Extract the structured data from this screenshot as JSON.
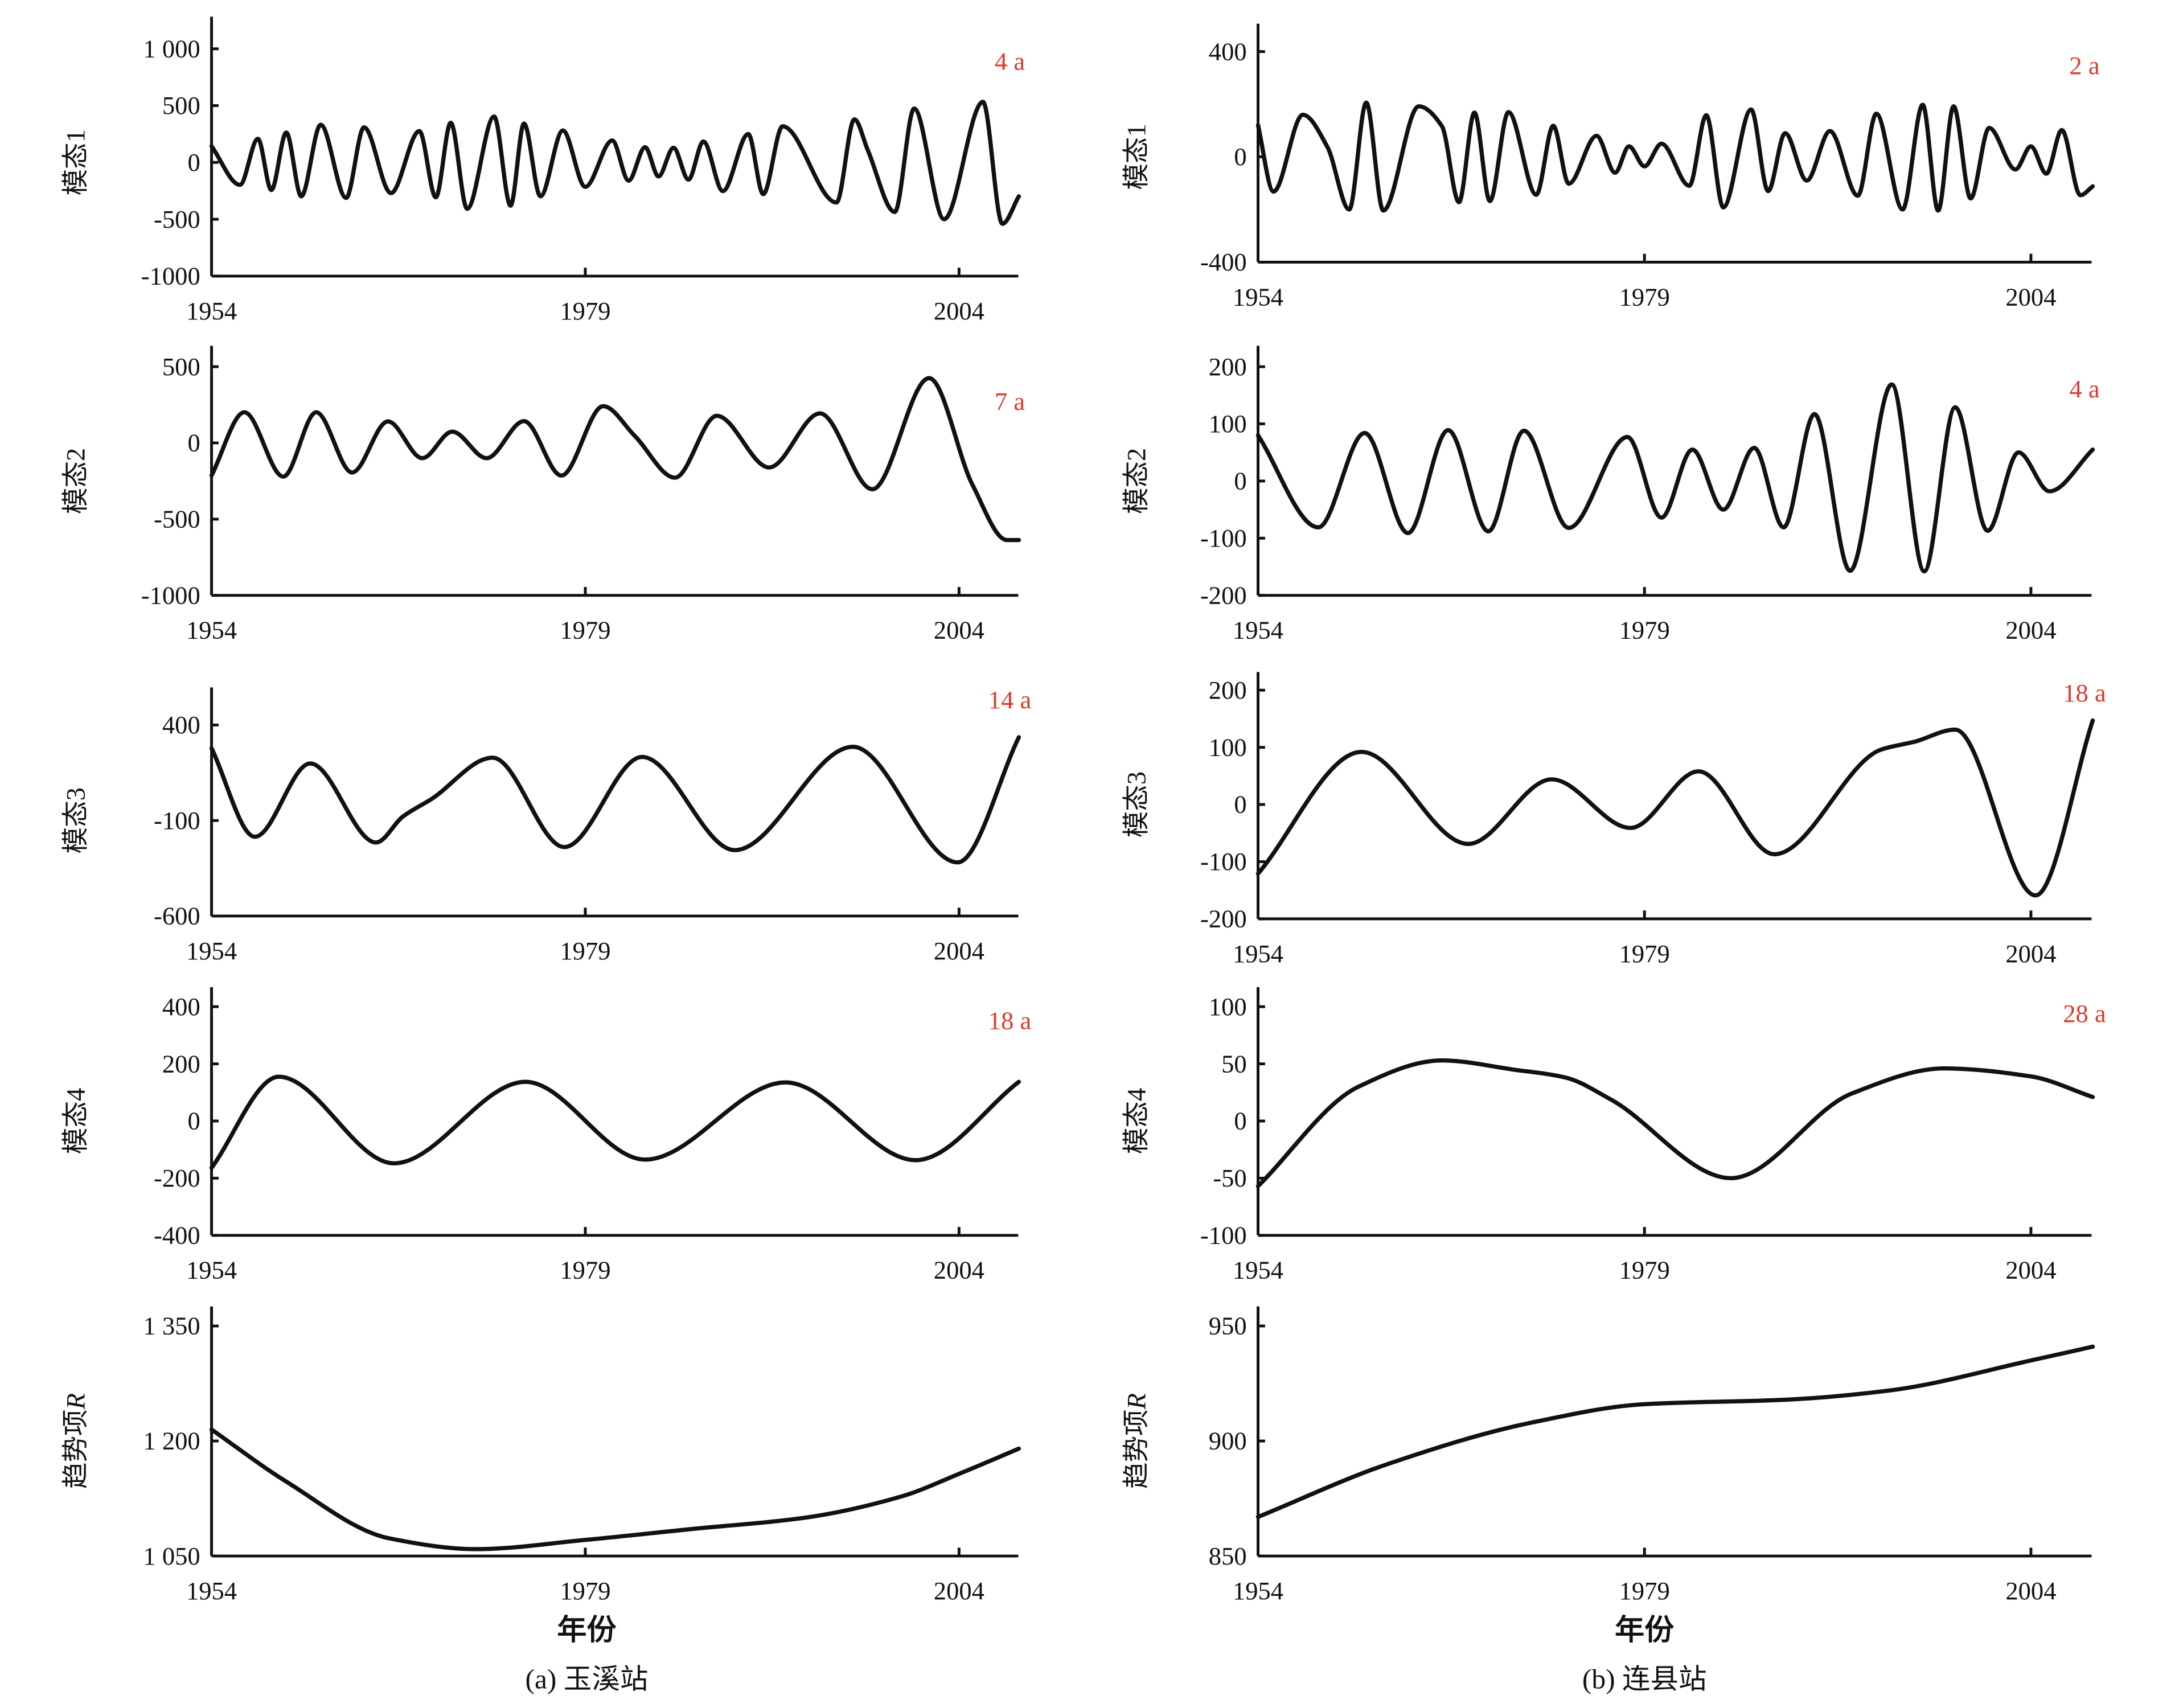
{
  "xlabel": "年份",
  "captions": [
    "(a) 玉溪站",
    "(b) 连县站"
  ],
  "chart_data": [
    {
      "panel": "a",
      "station": "玉溪站",
      "type": "line",
      "ylabel": "模态1",
      "period_label": "4 a",
      "xlim": [
        1954,
        2008
      ],
      "xticks": [
        1954,
        1979,
        2004
      ],
      "ylim": [
        -1000,
        1000
      ],
      "yticks": [
        1000,
        500,
        0,
        -500,
        -1000
      ],
      "ytick_labels": [
        "1 000",
        "500",
        "0",
        "-500",
        "-1000"
      ],
      "points": [
        [
          1954,
          143
        ],
        [
          1955.9,
          -197
        ],
        [
          1957.1,
          208
        ],
        [
          1958,
          -243
        ],
        [
          1959,
          263
        ],
        [
          1960,
          -298
        ],
        [
          1961.3,
          331
        ],
        [
          1963,
          -312
        ],
        [
          1964.2,
          309
        ],
        [
          1966,
          -270
        ],
        [
          1967.9,
          276
        ],
        [
          1969,
          -307
        ],
        [
          1970,
          349
        ],
        [
          1971.1,
          -408
        ],
        [
          1972.9,
          404
        ],
        [
          1974,
          -380
        ],
        [
          1974.9,
          342
        ],
        [
          1976,
          -298
        ],
        [
          1977.5,
          281
        ],
        [
          1979,
          -215
        ],
        [
          1980.8,
          193
        ],
        [
          1981.9,
          -160
        ],
        [
          1983,
          134
        ],
        [
          1983.9,
          -123
        ],
        [
          1984.9,
          129
        ],
        [
          1985.9,
          -151
        ],
        [
          1986.9,
          184
        ],
        [
          1988.2,
          -252
        ],
        [
          1989.9,
          250
        ],
        [
          1990.9,
          -279
        ],
        [
          1992.2,
          318
        ],
        [
          1995.8,
          -353
        ],
        [
          1997,
          379
        ],
        [
          1997.9,
          107
        ],
        [
          1999.7,
          -436
        ],
        [
          2001,
          474
        ],
        [
          2003,
          -500
        ],
        [
          2005.6,
          533
        ],
        [
          2006.9,
          -540
        ],
        [
          2008,
          -298
        ]
      ]
    },
    {
      "panel": "a",
      "station": "玉溪站",
      "type": "line",
      "ylabel": "模态2",
      "period_label": "7 a",
      "xlim": [
        1954,
        2008
      ],
      "xticks": [
        1954,
        1979,
        2004
      ],
      "ylim": [
        -1000,
        500
      ],
      "yticks": [
        500,
        0,
        -500,
        -1000
      ],
      "ytick_labels": [
        "500",
        "0",
        "-500",
        "-1000"
      ],
      "points": [
        [
          1954,
          -214
        ],
        [
          1956.2,
          201
        ],
        [
          1958.8,
          -221
        ],
        [
          1961,
          201
        ],
        [
          1963.4,
          -194
        ],
        [
          1965.8,
          141
        ],
        [
          1968.1,
          -100
        ],
        [
          1970.1,
          74
        ],
        [
          1972.4,
          -100
        ],
        [
          1974.9,
          143
        ],
        [
          1977.4,
          -214
        ],
        [
          1980.2,
          241
        ],
        [
          1982.3,
          47
        ],
        [
          1985,
          -228
        ],
        [
          1987.8,
          178
        ],
        [
          1991.3,
          -161
        ],
        [
          1994.7,
          194
        ],
        [
          1998.2,
          -304
        ],
        [
          2002,
          425
        ],
        [
          2004.9,
          -275
        ],
        [
          2007.2,
          -637
        ],
        [
          2008,
          -637
        ]
      ]
    },
    {
      "panel": "a",
      "station": "玉溪站",
      "type": "line",
      "ylabel": "模态3",
      "period_label": "14 a",
      "xlim": [
        1954,
        2008
      ],
      "xticks": [
        1954,
        1979,
        2004
      ],
      "ylim": [
        -600,
        400
      ],
      "yticks": [
        400,
        -100,
        -600
      ],
      "ytick_labels": [
        "400",
        "-100",
        "-600"
      ],
      "points": [
        [
          1954,
          278
        ],
        [
          1956.9,
          -185
        ],
        [
          1960.6,
          199
        ],
        [
          1965,
          -215
        ],
        [
          1966.8,
          -79
        ],
        [
          1968.7,
          12
        ],
        [
          1972.8,
          229
        ],
        [
          1977.6,
          -239
        ],
        [
          1982.8,
          233
        ],
        [
          1989,
          -255
        ],
        [
          1996.9,
          286
        ],
        [
          2003.9,
          -319
        ],
        [
          2008,
          336
        ]
      ]
    },
    {
      "panel": "a",
      "station": "玉溪站",
      "type": "line",
      "ylabel": "模态4",
      "period_label": "18 a",
      "xlim": [
        1954,
        2008
      ],
      "xticks": [
        1954,
        1979,
        2004
      ],
      "ylim": [
        -400,
        400
      ],
      "yticks": [
        400,
        200,
        0,
        -200,
        -400
      ],
      "ytick_labels": [
        "400",
        "200",
        "0",
        "-200",
        "-400"
      ],
      "points": [
        [
          1954,
          -164
        ],
        [
          1958.5,
          155
        ],
        [
          1966.2,
          -148
        ],
        [
          1975,
          137
        ],
        [
          1983,
          -135
        ],
        [
          1992.4,
          135
        ],
        [
          2001.1,
          -137
        ],
        [
          2008,
          137
        ]
      ]
    },
    {
      "panel": "a",
      "station": "玉溪站",
      "type": "line",
      "ylabel": "趋势项",
      "ylabel_italic": "R",
      "period_label": "",
      "xlim": [
        1954,
        2008
      ],
      "xticks": [
        1954,
        1979,
        2004
      ],
      "ylim": [
        1050,
        1350
      ],
      "yticks": [
        1350,
        1200,
        1050
      ],
      "ytick_labels": [
        "1 350",
        "1 200",
        "1 050"
      ],
      "points": [
        [
          1954,
          1215
        ],
        [
          1959,
          1147
        ],
        [
          1965.9,
          1073
        ],
        [
          1971.7,
          1059
        ],
        [
          1979,
          1071
        ],
        [
          1986,
          1085
        ],
        [
          1993.7,
          1100
        ],
        [
          2000.2,
          1128
        ],
        [
          2004.1,
          1158
        ],
        [
          2008,
          1190
        ]
      ]
    },
    {
      "panel": "b",
      "station": "连县站",
      "type": "line",
      "ylabel": "模态1",
      "period_label": "2 a",
      "xlim": [
        1954,
        2008
      ],
      "xticks": [
        1954,
        1979,
        2004
      ],
      "ylim": [
        -400,
        400
      ],
      "yticks": [
        400,
        0,
        -400
      ],
      "ytick_labels": [
        "400",
        "0",
        "-400"
      ],
      "points": [
        [
          1954,
          120
        ],
        [
          1955,
          -132
        ],
        [
          1956.9,
          160
        ],
        [
          1958.5,
          36
        ],
        [
          1959.9,
          -200
        ],
        [
          1961,
          206
        ],
        [
          1962.1,
          -204
        ],
        [
          1964.4,
          192
        ],
        [
          1965.9,
          116
        ],
        [
          1967,
          -172
        ],
        [
          1968,
          168
        ],
        [
          1969,
          -168
        ],
        [
          1970.2,
          170
        ],
        [
          1972,
          -144
        ],
        [
          1973.1,
          118
        ],
        [
          1974.1,
          -102
        ],
        [
          1975.9,
          80
        ],
        [
          1977.1,
          -60
        ],
        [
          1978,
          40
        ],
        [
          1979,
          -36
        ],
        [
          1980.1,
          50
        ],
        [
          1981.9,
          -110
        ],
        [
          1983,
          158
        ],
        [
          1984.1,
          -192
        ],
        [
          1985.9,
          180
        ],
        [
          1987,
          -130
        ],
        [
          1988.1,
          90
        ],
        [
          1989.5,
          -90
        ],
        [
          1991,
          98
        ],
        [
          1992.8,
          -148
        ],
        [
          1994,
          164
        ],
        [
          1995.7,
          -200
        ],
        [
          1997,
          198
        ],
        [
          1998,
          -204
        ],
        [
          1999,
          192
        ],
        [
          2000.1,
          -158
        ],
        [
          2001.3,
          110
        ],
        [
          2003,
          -48
        ],
        [
          2004,
          40
        ],
        [
          2005,
          -64
        ],
        [
          2006,
          102
        ],
        [
          2007.2,
          -146
        ],
        [
          2008,
          -112
        ]
      ]
    },
    {
      "panel": "b",
      "station": "连县站",
      "type": "line",
      "ylabel": "模态2",
      "period_label": "4 a",
      "xlim": [
        1954,
        2008
      ],
      "xticks": [
        1954,
        1979,
        2004
      ],
      "ylim": [
        -200,
        200
      ],
      "yticks": [
        200,
        100,
        0,
        -100,
        -200
      ],
      "ytick_labels": [
        "200",
        "100",
        "0",
        "-100",
        "-200"
      ],
      "points": [
        [
          1954,
          80
        ],
        [
          1957.9,
          -81
        ],
        [
          1960.9,
          84
        ],
        [
          1963.7,
          -91
        ],
        [
          1966.3,
          89
        ],
        [
          1968.9,
          -88
        ],
        [
          1971.2,
          88
        ],
        [
          1974.1,
          -82
        ],
        [
          1977.9,
          77
        ],
        [
          1980.1,
          -64
        ],
        [
          1982.1,
          55
        ],
        [
          1984.1,
          -50
        ],
        [
          1986.1,
          58
        ],
        [
          1988,
          -81
        ],
        [
          1990,
          117
        ],
        [
          1992.3,
          -157
        ],
        [
          1995,
          169
        ],
        [
          1997.1,
          -158
        ],
        [
          1999.1,
          129
        ],
        [
          2001.2,
          -87
        ],
        [
          2003.2,
          50
        ],
        [
          2005.2,
          -18
        ],
        [
          2008,
          55
        ]
      ]
    },
    {
      "panel": "b",
      "station": "连县站",
      "type": "line",
      "ylabel": "模态3",
      "period_label": "18 a",
      "xlim": [
        1954,
        2008
      ],
      "xticks": [
        1954,
        1979,
        2004
      ],
      "ylim": [
        -200,
        200
      ],
      "yticks": [
        200,
        100,
        0,
        -100,
        -200
      ],
      "ytick_labels": [
        "200",
        "100",
        "0",
        "-100",
        "-200"
      ],
      "points": [
        [
          1954,
          -121
        ],
        [
          1960.7,
          92
        ],
        [
          1967.6,
          -69
        ],
        [
          1973,
          44
        ],
        [
          1978.1,
          -41
        ],
        [
          1982.5,
          58
        ],
        [
          1987.4,
          -87
        ],
        [
          1994.3,
          96
        ],
        [
          1996.5,
          110
        ],
        [
          1999.1,
          131
        ],
        [
          2004.3,
          -159
        ],
        [
          2008,
          147
        ]
      ]
    },
    {
      "panel": "b",
      "station": "连县站",
      "type": "line",
      "ylabel": "模态4",
      "period_label": "28 a",
      "xlim": [
        1954,
        2008
      ],
      "xticks": [
        1954,
        1979,
        2004
      ],
      "ylim": [
        -100,
        100
      ],
      "yticks": [
        100,
        50,
        0,
        -50,
        -100
      ],
      "ytick_labels": [
        "100",
        "50",
        "0",
        "-50",
        "-100"
      ],
      "points": [
        [
          1954,
          -57
        ],
        [
          1960.5,
          30
        ],
        [
          1965.9,
          53
        ],
        [
          1970.5,
          45
        ],
        [
          1973.9,
          38
        ],
        [
          1976.8,
          19
        ],
        [
          1984.6,
          -50
        ],
        [
          1992.4,
          24
        ],
        [
          1998.4,
          46
        ],
        [
          2004,
          39
        ],
        [
          2008,
          21
        ]
      ]
    },
    {
      "panel": "b",
      "station": "连县站",
      "type": "line",
      "ylabel": "趋势项",
      "ylabel_italic": "R",
      "period_label": "",
      "xlim": [
        1954,
        2008
      ],
      "xticks": [
        1954,
        1979,
        2004
      ],
      "ylim": [
        850,
        950
      ],
      "yticks": [
        950,
        900,
        850
      ],
      "ytick_labels": [
        "950",
        "900",
        "850"
      ],
      "points": [
        [
          1954,
          867
        ],
        [
          1962.4,
          890
        ],
        [
          1971.7,
          908
        ],
        [
          1979,
          916
        ],
        [
          1988.3,
          918
        ],
        [
          1994.9,
          922
        ],
        [
          2004,
          935
        ],
        [
          2008,
          941
        ]
      ]
    }
  ]
}
